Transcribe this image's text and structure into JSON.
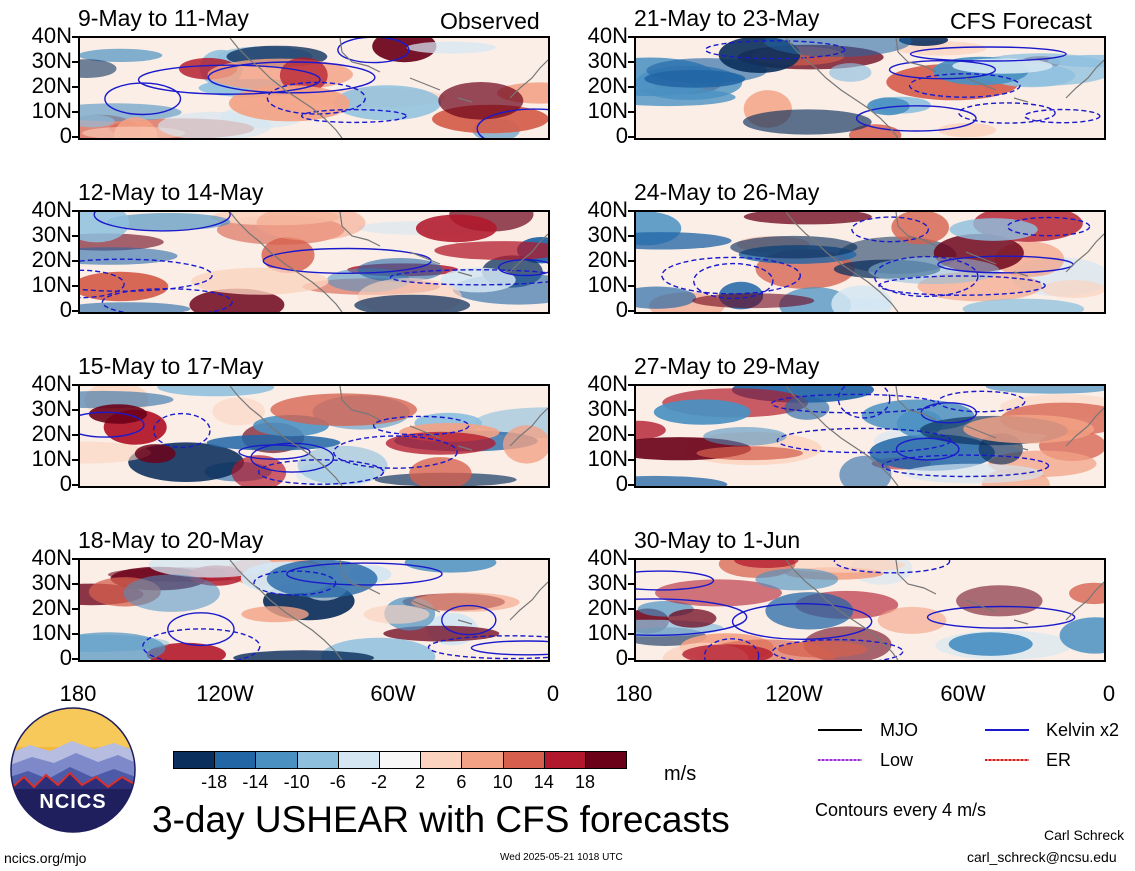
{
  "panels": [
    {
      "title": "9-May to 11-May",
      "tag": "Observed"
    },
    {
      "title": "21-May to 23-May",
      "tag": "CFS Forecast"
    },
    {
      "title": "12-May to 14-May",
      "tag": ""
    },
    {
      "title": "24-May to 26-May",
      "tag": ""
    },
    {
      "title": "15-May to 17-May",
      "tag": ""
    },
    {
      "title": "27-May to 29-May",
      "tag": ""
    },
    {
      "title": "18-May to 20-May",
      "tag": ""
    },
    {
      "title": "30-May to 1-Jun",
      "tag": ""
    }
  ],
  "lat_labels": [
    "40N",
    "30N",
    "20N",
    "10N",
    "0"
  ],
  "lon_labels": [
    "180",
    "120W",
    "60W",
    "0"
  ],
  "colorbar": {
    "labels": [
      "-18",
      "-14",
      "-10",
      "-6",
      "-2",
      "2",
      "6",
      "10",
      "14",
      "18"
    ],
    "unit": "m/s",
    "colors": [
      "#0b2f5c",
      "#2266a6",
      "#4a91c2",
      "#8ec0de",
      "#d4e6f2",
      "#f8f8f8",
      "#fbd3bf",
      "#f3a285",
      "#d6604d",
      "#b2182b",
      "#6b0119"
    ]
  },
  "legend": [
    {
      "label": "MJO",
      "color": "#000000"
    },
    {
      "label": "Kelvin x2",
      "color": "#1a1acc"
    },
    {
      "label": "Low",
      "color": "#9b30d9"
    },
    {
      "label": "ER",
      "color": "#cc2222"
    }
  ],
  "contour_note": "Contours every 4 m/s",
  "main_title": "3-day USHEAR with CFS forecasts",
  "logo_text": "NCICS",
  "footer": {
    "url": "ncics.org/mjo",
    "timestamp": "Wed 2025-05-21 1018 UTC",
    "author": "Carl Schreck",
    "email": "carl_schreck@ncsu.edu"
  }
}
